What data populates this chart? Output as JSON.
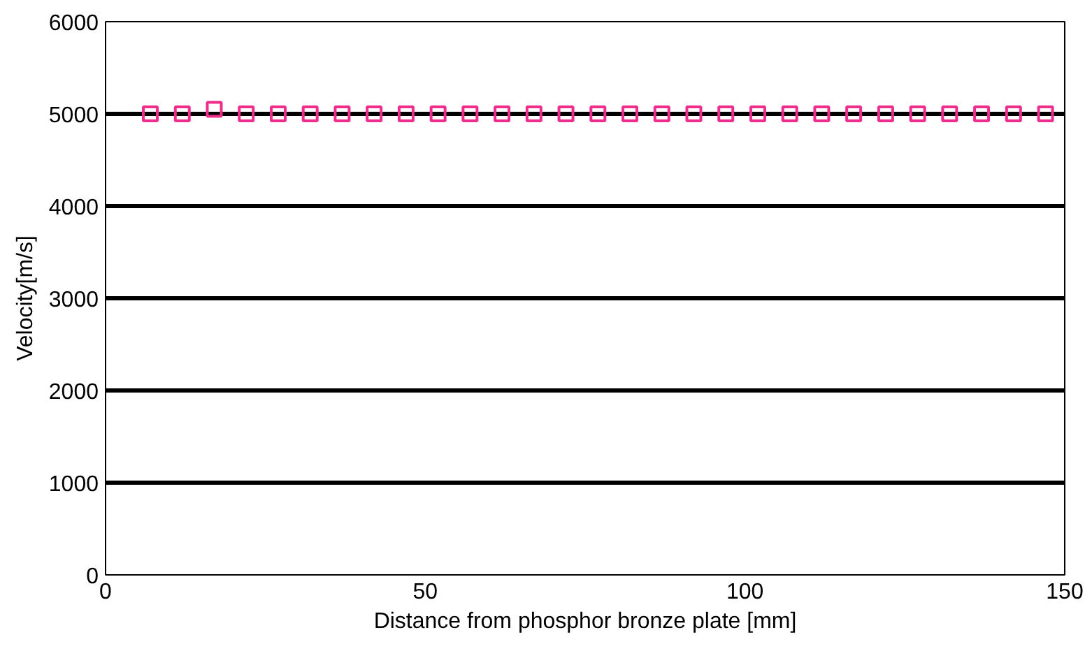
{
  "chart_data": {
    "type": "scatter",
    "xlabel": "Distance from phosphor bronze plate [mm]",
    "ylabel": "Velocity[m/s]",
    "x": [
      7,
      12,
      17,
      22,
      27,
      32,
      37,
      42,
      47,
      52,
      57,
      62,
      67,
      72,
      77,
      82,
      87,
      92,
      97,
      102,
      107,
      112,
      117,
      122,
      127,
      132,
      137,
      142,
      147
    ],
    "series": [
      {
        "color": "#ee2d8c",
        "values": [
          5000,
          5000,
          5050,
          5000,
          5000,
          5000,
          5000,
          5000,
          5000,
          5000,
          5000,
          5000,
          5000,
          5000,
          5000,
          5000,
          5000,
          5000,
          5000,
          5000,
          5000,
          5000,
          5000,
          5000,
          5000,
          5000,
          5000,
          5000,
          5000
        ]
      }
    ],
    "xlim": [
      0,
      150
    ],
    "ylim": [
      0,
      6000
    ],
    "xticks": [
      0,
      50,
      100,
      150
    ],
    "yticks": [
      0,
      1000,
      2000,
      3000,
      4000,
      5000,
      6000
    ],
    "grid": "y",
    "marker": "square"
  }
}
